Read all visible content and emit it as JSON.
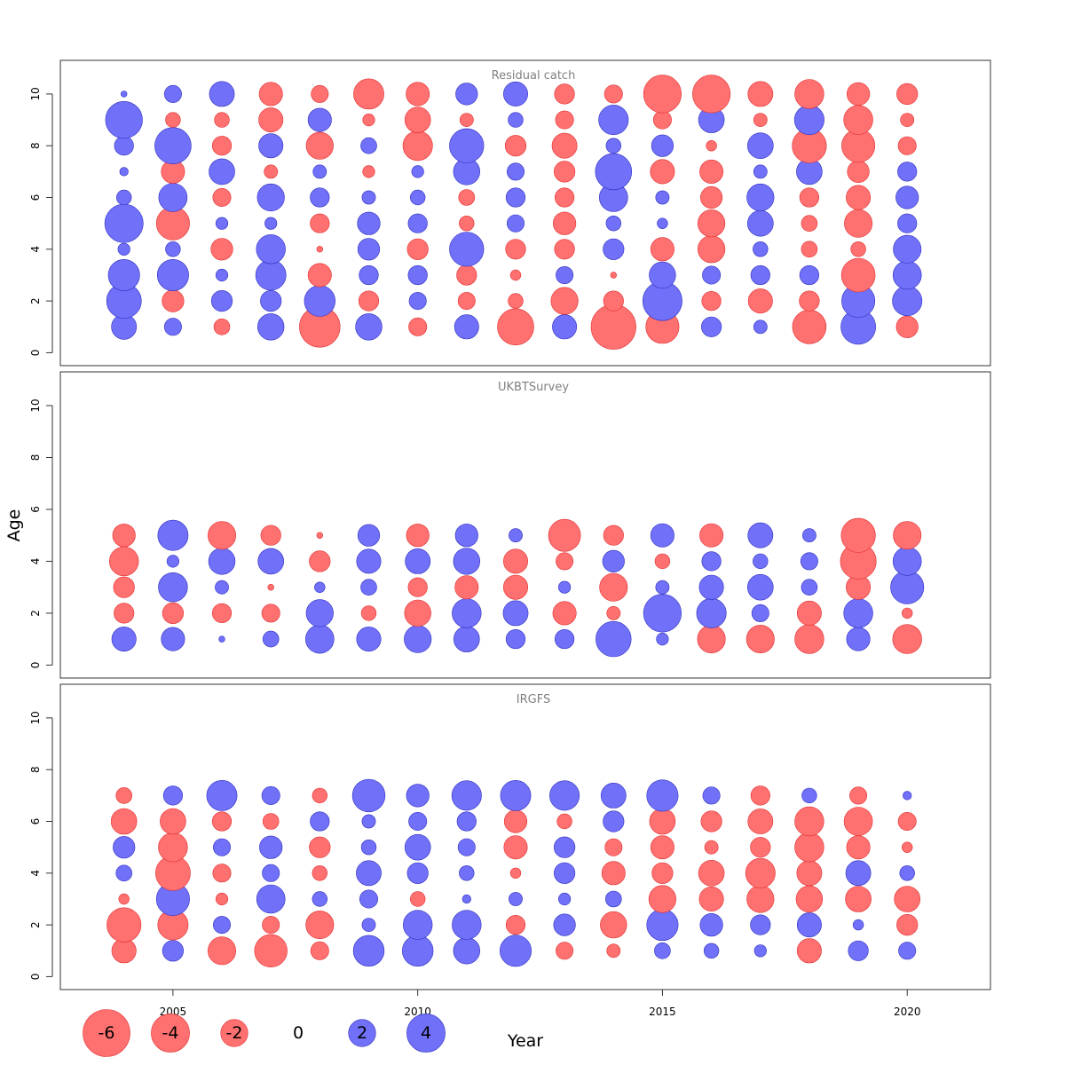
{
  "chart_data": {
    "type": "scatter",
    "subtype": "bubble-residuals",
    "xlabel": "Year",
    "ylabel": "Age",
    "x_ticks": [
      2005,
      2010,
      2015,
      2020
    ],
    "y_ticks": [
      0,
      2,
      4,
      6,
      8,
      10
    ],
    "xlim": [
      2002.7,
      2021.7
    ],
    "ylim": [
      -0.5,
      11.3
    ],
    "years": [
      2004,
      2005,
      2006,
      2007,
      2008,
      2009,
      2010,
      2011,
      2012,
      2013,
      2014,
      2015,
      2016,
      2017,
      2018,
      2019,
      2020
    ],
    "colors": {
      "positive": "#7070f8",
      "negative": "#ff7070",
      "positive_edge": "#3030c0",
      "negative_edge": "#e03030"
    },
    "legend": {
      "values": [
        -6,
        -4,
        -2,
        0,
        2,
        4
      ],
      "labels": [
        "-6",
        "-4",
        "-2",
        "0",
        "2",
        "4"
      ]
    },
    "panels": [
      {
        "title": "Residual catch",
        "ages": [
          1,
          2,
          3,
          4,
          5,
          6,
          7,
          8,
          9,
          10
        ],
        "residuals": [
          [
            1.7,
            0.8,
            -0.7,
            1.9,
            -4.5,
            1.9,
            -0.9,
            1.6,
            -3.6,
            1.6,
            -5.5,
            -3.0,
            1.1,
            0.5,
            -3.1,
            3.3,
            -1.3
          ],
          [
            3.3,
            -1.3,
            1.2,
            1.2,
            2.6,
            -1.1,
            0.8,
            -0.8,
            -0.6,
            -2.0,
            -1.1,
            4.2,
            -1.0,
            -1.6,
            -1.1,
            3.0,
            2.4
          ],
          [
            2.7,
            2.7,
            0.4,
            2.5,
            -1.5,
            1.0,
            1.0,
            -1.1,
            -0.3,
            0.8,
            -0.1,
            1.9,
            0.9,
            1.0,
            1.0,
            -3.1,
            2.2
          ],
          [
            0.4,
            0.6,
            -1.3,
            2.3,
            -0.1,
            1.3,
            -1.2,
            3.2,
            -1.1,
            -1.1,
            1.2,
            -1.5,
            -2.0,
            0.6,
            -0.7,
            -0.6,
            2.1
          ],
          [
            4.0,
            -3.0,
            0.4,
            0.4,
            -1.0,
            1.4,
            1.0,
            -0.6,
            0.8,
            -1.4,
            0.6,
            0.3,
            -2.0,
            1.8,
            -0.7,
            -2.1,
            1.0
          ],
          [
            0.6,
            2.2,
            -0.9,
            2.0,
            1.0,
            0.5,
            0.6,
            -0.7,
            1.0,
            -1.0,
            2.2,
            0.5,
            -1.3,
            2.0,
            -1.0,
            -1.6,
            1.4
          ],
          [
            0.2,
            -1.5,
            1.8,
            -0.5,
            0.5,
            -0.4,
            0.4,
            1.9,
            0.8,
            -1.2,
            3.6,
            -1.6,
            -1.5,
            0.5,
            1.8,
            -1.3,
            1.0
          ],
          [
            1.0,
            3.6,
            -1.0,
            1.6,
            -2.0,
            0.7,
            -2.4,
            3.2,
            -1.2,
            -1.7,
            0.6,
            1.3,
            -0.3,
            1.8,
            -3.2,
            -3.0,
            -0.9
          ],
          [
            3.7,
            -0.6,
            -0.6,
            -1.6,
            1.5,
            -0.4,
            -1.8,
            -0.5,
            0.6,
            -0.9,
            2.4,
            -0.9,
            1.8,
            -0.5,
            2.4,
            -2.3,
            -0.5
          ],
          [
            0.1,
            0.8,
            1.7,
            -1.5,
            -0.8,
            -2.5,
            -1.5,
            1.3,
            1.6,
            -1.1,
            -0.9,
            -3.9,
            -3.9,
            -1.7,
            -2.3,
            -1.4,
            -1.2
          ]
        ]
      },
      {
        "title": "UKBTSurvey",
        "ages": [
          1,
          2,
          3,
          4,
          5
        ],
        "residuals": [
          [
            1.6,
            1.5,
            0.1,
            0.7,
            2.2,
            1.6,
            2.0,
            1.8,
            1.0,
            1.0,
            3.4,
            0.4,
            -2.1,
            -2.1,
            -2.3,
            1.5,
            -2.3
          ],
          [
            -1.1,
            -1.2,
            -1.0,
            -0.9,
            2.0,
            -0.6,
            -1.9,
            2.3,
            1.7,
            -1.5,
            -0.5,
            3.9,
            2.4,
            0.8,
            -1.6,
            2.3,
            -0.3
          ],
          [
            -1.2,
            2.3,
            0.5,
            -0.1,
            0.3,
            0.7,
            -1.0,
            -1.5,
            -1.6,
            0.4,
            -2.1,
            0.5,
            1.6,
            1.8,
            0.7,
            -1.6,
            3.0
          ],
          [
            -2.3,
            0.4,
            1.9,
            1.8,
            -1.2,
            1.6,
            1.7,
            1.9,
            -1.6,
            -0.8,
            1.3,
            -0.6,
            1.0,
            0.6,
            0.8,
            -3.5,
            2.2
          ],
          [
            -1.4,
            2.5,
            -2.1,
            -1.1,
            -0.1,
            1.3,
            -1.4,
            1.4,
            0.5,
            -2.8,
            -1.1,
            1.5,
            -1.5,
            1.7,
            0.5,
            -3.2,
            -2.1
          ]
        ]
      },
      {
        "title": "IRGFS",
        "ages": [
          1,
          2,
          3,
          4,
          5,
          6,
          7
        ],
        "residuals": [
          [
            -1.6,
            1.2,
            -2.1,
            -2.9,
            -0.9,
            2.6,
            2.6,
            1.9,
            2.7,
            -0.8,
            -0.5,
            0.7,
            0.6,
            0.4,
            -1.6,
            1.1,
            0.8
          ],
          [
            -3.2,
            -2.5,
            0.8,
            -0.8,
            -2.1,
            0.5,
            2.3,
            2.3,
            -1.0,
            1.3,
            -1.9,
            2.7,
            1.4,
            1.1,
            1.6,
            0.3,
            -1.2
          ],
          [
            -0.3,
            3.0,
            -0.4,
            2.2,
            0.6,
            0.9,
            -0.6,
            0.2,
            0.5,
            0.4,
            0.7,
            -2.0,
            -1.6,
            -2.0,
            -1.9,
            -1.8,
            -1.8
          ],
          [
            0.7,
            -3.3,
            -0.9,
            0.8,
            -0.6,
            1.7,
            1.2,
            0.6,
            -0.3,
            1.2,
            -1.5,
            -1.2,
            -1.8,
            -2.4,
            -1.7,
            1.7,
            0.6
          ],
          [
            1.3,
            -2.3,
            0.8,
            1.4,
            -1.2,
            0.6,
            1.8,
            0.8,
            -1.5,
            1.2,
            -0.8,
            -1.5,
            -0.5,
            -1.1,
            -2.3,
            -1.5,
            -0.3
          ],
          [
            -1.8,
            -1.8,
            -1.0,
            -0.7,
            1.0,
            0.5,
            0.9,
            1.0,
            -1.4,
            -0.6,
            1.2,
            -1.8,
            -1.2,
            -1.7,
            -2.3,
            -2.2,
            -0.9
          ],
          [
            -0.7,
            1.0,
            2.5,
            0.9,
            -0.6,
            2.9,
            1.4,
            2.4,
            2.5,
            2.4,
            1.7,
            2.7,
            0.8,
            -1.0,
            0.6,
            -0.8,
            0.2
          ]
        ]
      }
    ]
  }
}
